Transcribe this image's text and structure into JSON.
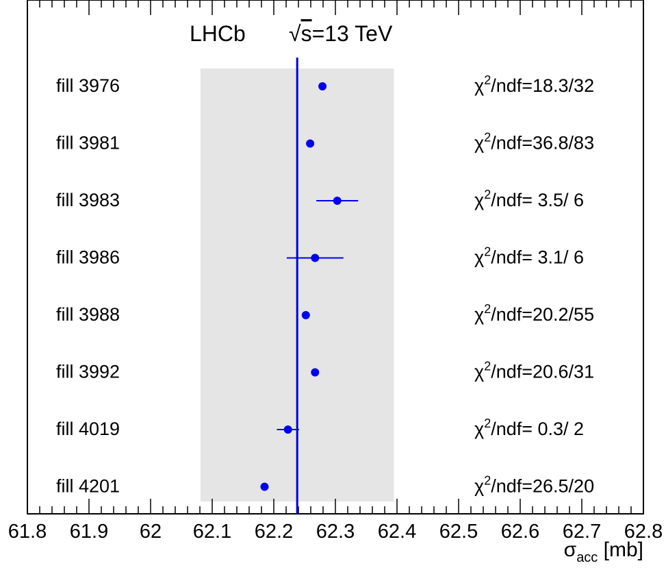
{
  "chart_data": {
    "type": "scatter",
    "title": "LHCb",
    "energy": "√s=13 TeV",
    "energy_sqrt": "√",
    "energy_s": "s",
    "energy_rest": "=13 TeV",
    "xlabel_symbol": "σ",
    "xlabel_sub": "acc",
    "xlabel_unit": " [mb]",
    "xlim": [
      61.8,
      62.8
    ],
    "x_ticks": [
      "61.8",
      "61.9",
      "62",
      "62.1",
      "62.2",
      "62.3",
      "62.4",
      "62.5",
      "62.6",
      "62.7",
      "62.8"
    ],
    "x_tick_values": [
      61.8,
      61.9,
      62.0,
      62.1,
      62.2,
      62.3,
      62.4,
      62.5,
      62.6,
      62.7,
      62.8
    ],
    "mean": 62.238,
    "band": [
      62.081,
      62.395
    ],
    "colors": {
      "marker": "#0000ee",
      "mean_line": "#0000dd",
      "band": "#e5e5e5"
    },
    "points": [
      {
        "label": "fill 3976",
        "x": 62.279,
        "err": 0.0,
        "chi2_prefix": "χ",
        "chi2_sup": "2",
        "chi2_text": "/ndf=18.3/32"
      },
      {
        "label": "fill 3981",
        "x": 62.259,
        "err": 0.0,
        "chi2_prefix": "χ",
        "chi2_sup": "2",
        "chi2_text": "/ndf=36.8/83"
      },
      {
        "label": "fill 3983",
        "x": 62.303,
        "err": 0.034,
        "chi2_prefix": "χ",
        "chi2_sup": "2",
        "chi2_text": "/ndf= 3.5/ 6"
      },
      {
        "label": "fill 3986",
        "x": 62.267,
        "err": 0.046,
        "chi2_prefix": "χ",
        "chi2_sup": "2",
        "chi2_text": "/ndf= 3.1/ 6"
      },
      {
        "label": "fill 3988",
        "x": 62.252,
        "err": 0.0,
        "chi2_prefix": "χ",
        "chi2_sup": "2",
        "chi2_text": "/ndf=20.2/55"
      },
      {
        "label": "fill 3992",
        "x": 62.267,
        "err": 0.0,
        "chi2_prefix": "χ",
        "chi2_sup": "2",
        "chi2_text": "/ndf=20.6/31"
      },
      {
        "label": "fill 4019",
        "x": 62.223,
        "err": 0.018,
        "chi2_prefix": "χ",
        "chi2_sup": "2",
        "chi2_text": "/ndf= 0.3/ 2"
      },
      {
        "label": "fill 4201",
        "x": 62.185,
        "err": 0.0,
        "chi2_prefix": "χ",
        "chi2_sup": "2",
        "chi2_text": "/ndf=26.5/20"
      }
    ]
  }
}
